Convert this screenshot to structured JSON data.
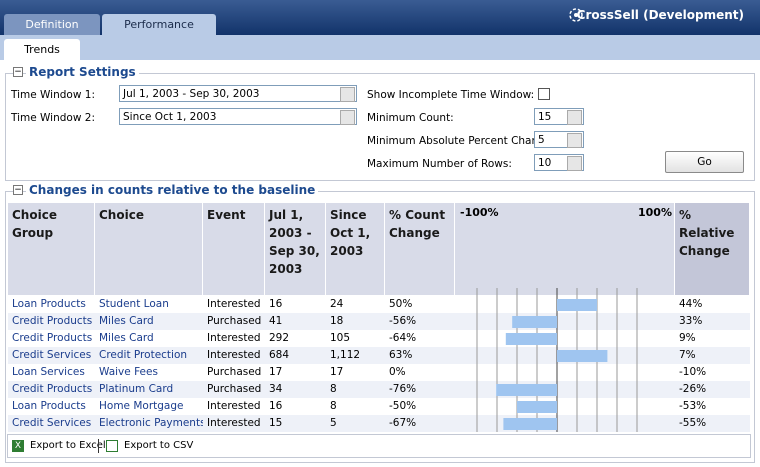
{
  "header": {
    "tabs": [
      "Definition",
      "Performance"
    ],
    "app_title": "CrossSell (Development)",
    "subtabs": [
      "Trends"
    ]
  },
  "settings": {
    "title": "Report Settings",
    "time_window_1": {
      "label": "Time Window 1:",
      "value": "Jul 1, 2003 - Sep 30, 2003"
    },
    "time_window_2": {
      "label": "Time Window 2:",
      "value": "Since Oct 1, 2003"
    },
    "show_incomplete": {
      "label": "Show Incomplete Time Window:"
    },
    "minimum_count": {
      "label": "Minimum Count:",
      "value": "15"
    },
    "minimum_percent": {
      "label": "Minimum Absolute Percent Change",
      "value": "5"
    },
    "maximum_rows": {
      "label": "Maximum Number of Rows:",
      "value": "10"
    },
    "go": "Go"
  },
  "table": {
    "title": "Changes in counts relative to the baseline",
    "columns": [
      "Choice Group",
      "Choice",
      "Event",
      "Jul 1, 2003 - Sep 30, 2003",
      "Since Oct 1, 2003",
      "% Count Change",
      "% Relative Change"
    ],
    "bar_axis": {
      "min": {
        "value": -100,
        "label": "-100%"
      },
      "max": {
        "value": 100,
        "label": "100%"
      },
      "ticks": [
        -100,
        -75,
        -50,
        -25,
        0,
        25,
        50,
        75,
        100
      ],
      "color": "#9fc5f0"
    },
    "rows": [
      {
        "group": "Loan Products",
        "choice": "Student Loan",
        "event": "Interested",
        "w1": "16",
        "w2": "24",
        "count_change": 50,
        "count_change_label": "50%",
        "relative_change": "44%"
      },
      {
        "group": "Credit Products",
        "choice": "Miles Card",
        "event": "Purchased",
        "w1": "41",
        "w2": "18",
        "count_change": -56,
        "count_change_label": "-56%",
        "relative_change": "33%"
      },
      {
        "group": "Credit Products",
        "choice": "Miles Card",
        "event": "Interested",
        "w1": "292",
        "w2": "105",
        "count_change": -64,
        "count_change_label": "-64%",
        "relative_change": "9%"
      },
      {
        "group": "Credit Services",
        "choice": "Credit Protection",
        "event": "Interested",
        "w1": "684",
        "w2": "1,112",
        "count_change": 63,
        "count_change_label": "63%",
        "relative_change": "7%"
      },
      {
        "group": "Loan Services",
        "choice": "Waive Fees",
        "event": "Purchased",
        "w1": "17",
        "w2": "17",
        "count_change": 0,
        "count_change_label": "0%",
        "relative_change": "-10%"
      },
      {
        "group": "Credit Products",
        "choice": "Platinum Card",
        "event": "Purchased",
        "w1": "34",
        "w2": "8",
        "count_change": -76,
        "count_change_label": "-76%",
        "relative_change": "-26%"
      },
      {
        "group": "Loan Products",
        "choice": "Home Mortgage",
        "event": "Interested",
        "w1": "16",
        "w2": "8",
        "count_change": -50,
        "count_change_label": "-50%",
        "relative_change": "-53%"
      },
      {
        "group": "Credit Services",
        "choice": "Electronic Payments",
        "event": "Interested",
        "w1": "15",
        "w2": "5",
        "count_change": -67,
        "count_change_label": "-67%",
        "relative_change": "-55%"
      }
    ]
  },
  "footer": {
    "export_excel": "Export to Excel",
    "export_csv": "Export to CSV"
  }
}
